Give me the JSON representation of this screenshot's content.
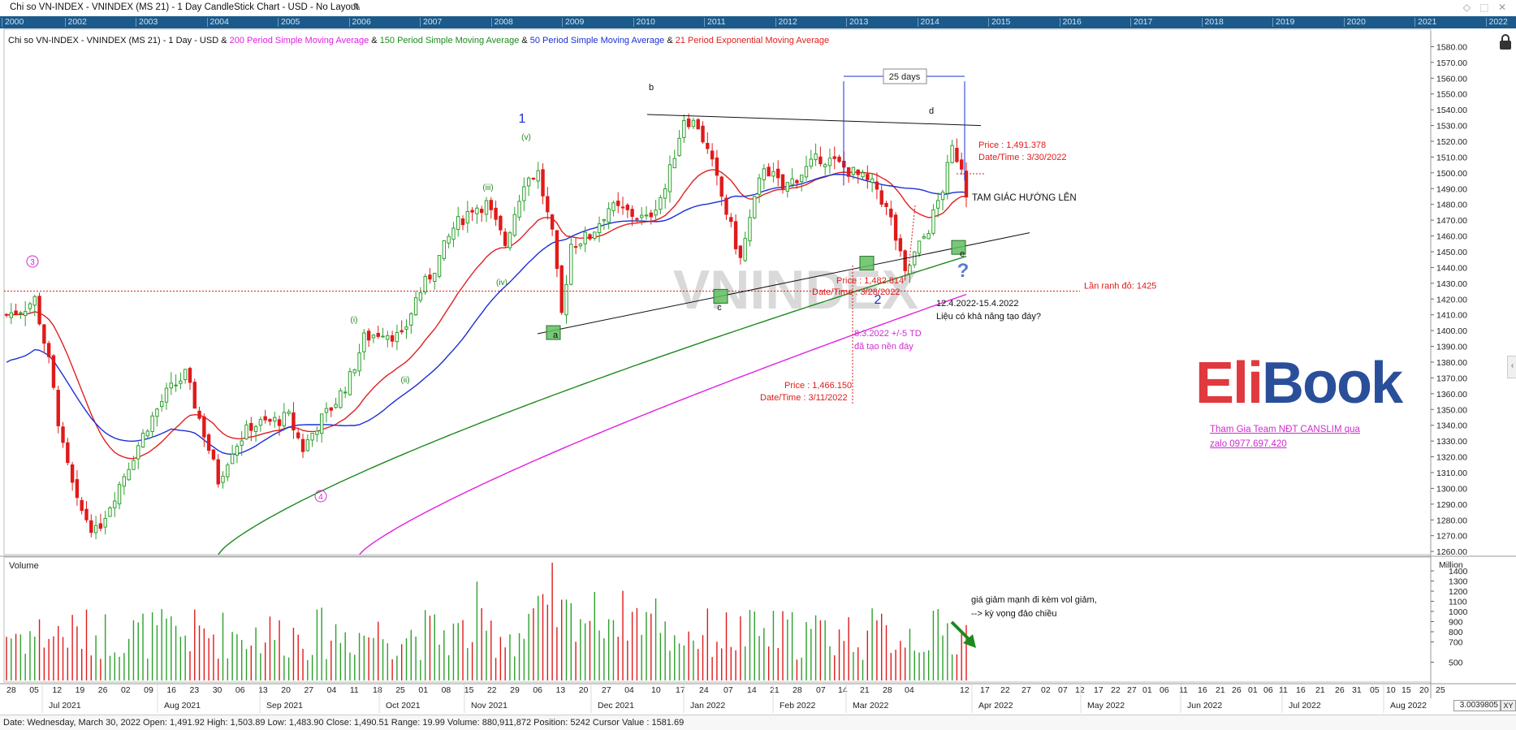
{
  "window": {
    "title": "Chi so VN-INDEX - VNINDEX (MS 21) - 1 Day CandleStick Chart - USD - No Layout"
  },
  "navigator_years": [
    "2000",
    "2002",
    "2003",
    "2004",
    "2005",
    "2006",
    "2007",
    "2008",
    "2009",
    "2010",
    "2011",
    "2012",
    "2013",
    "2014",
    "2015",
    "2016",
    "2017",
    "2018",
    "2019",
    "2020",
    "2021",
    "2022"
  ],
  "legend": {
    "prefix": "Chi so VN-INDEX - VNINDEX (MS 21) - 1 Day - USD & ",
    "sma200": "200 Period Simple Moving Average",
    "amp1": " & ",
    "sma150": "150 Period Simple Moving Average",
    "amp2": " & ",
    "sma50": "50 Period Simple Moving Average",
    "amp3": " & ",
    "ema21": "21 Period Exponential Moving Average",
    "colors": {
      "sma200": "#e020e0",
      "sma150": "#1e8a1e",
      "sma50": "#1a2fd6",
      "ema21": "#e02020"
    }
  },
  "chart_data": {
    "type": "candlestick",
    "symbol": "VNINDEX",
    "price_axis": {
      "ticks": [
        "1580.00",
        "1570.00",
        "1560.00",
        "1550.00",
        "1540.00",
        "1530.00",
        "1520.00",
        "1510.00",
        "1500.00",
        "1490.00",
        "1480.00",
        "1470.00",
        "1460.00",
        "1450.00",
        "1440.00",
        "1430.00",
        "1420.00",
        "1410.00",
        "1400.00",
        "1390.00",
        "1380.00",
        "1370.00",
        "1360.00",
        "1350.00",
        "1340.00",
        "1330.00",
        "1320.00",
        "1310.00",
        "1300.00",
        "1290.00",
        "1280.00",
        "1270.00",
        "1260.00"
      ],
      "range": [
        1258,
        1590
      ]
    },
    "volume_axis": {
      "unit": "Million",
      "ticks": [
        "1400",
        "1300",
        "1200",
        "1100",
        "1000",
        "900",
        "800",
        "700",
        "500"
      ],
      "range": [
        320,
        1520
      ]
    },
    "date_axis": {
      "day_ticks": [
        "28",
        "05",
        "12",
        "19",
        "26",
        "02",
        "09",
        "16",
        "23",
        "30",
        "06",
        "13",
        "20",
        "27",
        "04",
        "11",
        "18",
        "25",
        "01",
        "08",
        "15",
        "22",
        "29",
        "06",
        "13",
        "20",
        "27",
        "04",
        "10",
        "17",
        "24",
        "07",
        "14",
        "21",
        "28",
        "07",
        "14",
        "21",
        "28",
        "04",
        "12",
        "17",
        "22",
        "27",
        "02",
        "07",
        "12",
        "17",
        "22",
        "27",
        "01",
        "06",
        "11",
        "16",
        "21",
        "26",
        "01",
        "06",
        "11",
        "16",
        "21",
        "26",
        "31",
        "05",
        "10",
        "15",
        "20",
        "25"
      ],
      "month_ticks": [
        "Jul 2021",
        "Aug 2021",
        "Sep 2021",
        "Oct 2021",
        "Nov 2021",
        "Dec 2021",
        "Jan 2022",
        "Feb 2022",
        "Mar 2022",
        "Apr 2022",
        "May 2022",
        "Jun 2022",
        "Jul 2022",
        "Aug 2022"
      ]
    },
    "series_names": [
      "200 Period Simple Moving Average",
      "150 Period Simple Moving Average",
      "50 Period Simple Moving Average",
      "21 Period Exponential Moving Average"
    ],
    "watermark": "VNINDEX",
    "horizontal_line": {
      "value": 1425,
      "label": "Lần ranh đỏ: 1425"
    },
    "annotations": {
      "wave_labels": [
        "1",
        "2",
        "3",
        "4",
        "(i)",
        "(ii)",
        "(iii)",
        "(iv)",
        "(v)",
        "a",
        "b",
        "c",
        "d",
        "e"
      ],
      "measure_label": "25 days",
      "price_box_1": {
        "price": "Price : 1,491.378",
        "date": "Date/Time : 3/30/2022"
      },
      "price_box_2": {
        "price": "Price : 1,482.814",
        "date": "Date/Time : 3/28/2022"
      },
      "price_box_3": {
        "price": "Price : 1,466.150",
        "date": "Date/Time : 3/11/2022"
      },
      "triangle_note": "TAM GIÁC HƯỚNG LÊN",
      "date_range_note": "12.4.2022-15.4.2022",
      "question_note": "Liệu có khả năng tạo đáy?",
      "bottom_note_1": "8.3.2022 +/-5 TD",
      "bottom_note_2": "đã tạo nền đáy",
      "volume_note_1": "giá giảm mạnh đi kèm vol giảm,",
      "volume_note_2": "--> kỳ vọng đảo chiều",
      "question_mark": "?"
    },
    "volume_panel_label": "Volume",
    "grid": false
  },
  "brand": {
    "logo_part1": "Eli",
    "logo_part2": "Book",
    "tagline": "Tham Gia Team NĐT CANSLIM qua zalo 0977.697.420"
  },
  "status": {
    "text": "Date: Wednesday, March 30, 2022 Open: 1,491.92 High: 1,503.89 Low: 1,483.90 Close: 1,490.51 Range: 19.99 Volume: 880,911,872 Position: 5242 Cursor Value : 1581.69",
    "zoom": "3.0039805",
    "xy": "XY"
  }
}
